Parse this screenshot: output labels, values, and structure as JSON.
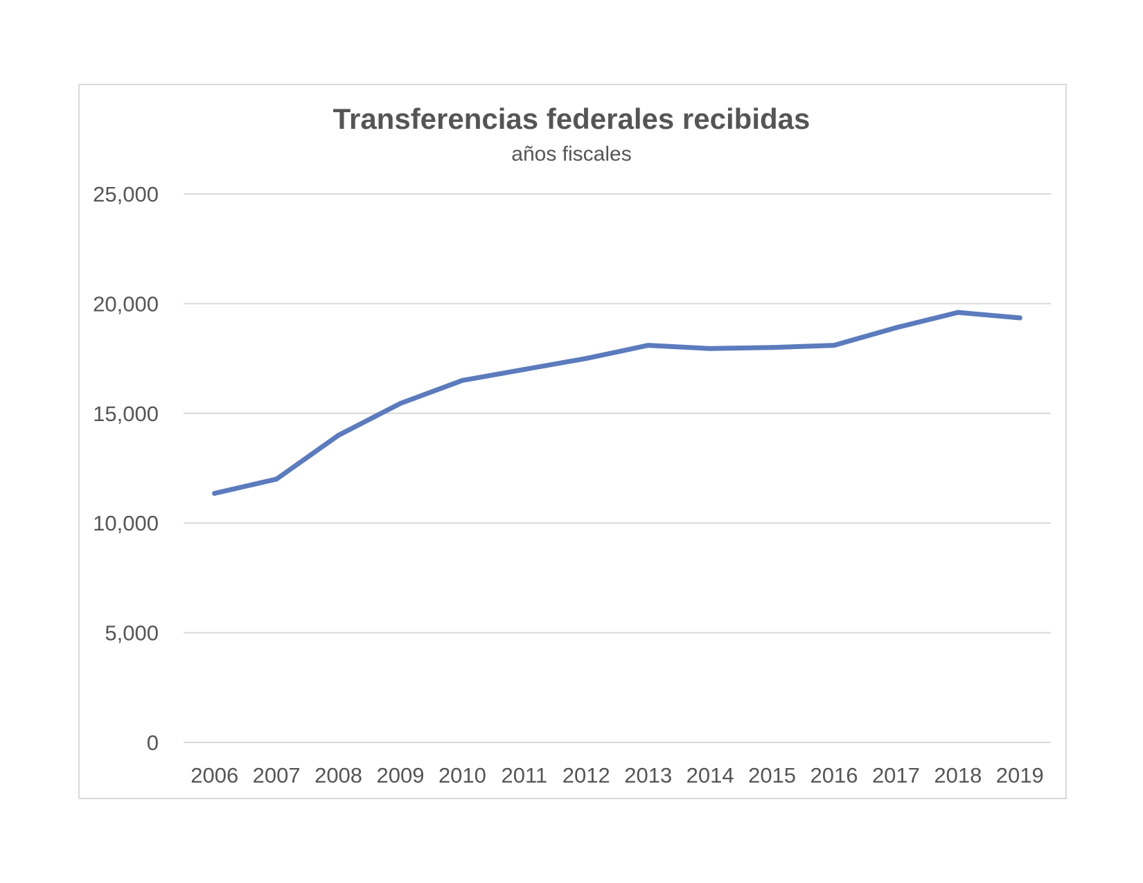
{
  "chart_data": {
    "type": "line",
    "title": "Transferencias federales recibidas",
    "subtitle": "años fiscales",
    "xlabel": "",
    "ylabel": "",
    "categories": [
      "2006",
      "2007",
      "2008",
      "2009",
      "2010",
      "2011",
      "2012",
      "2013",
      "2014",
      "2015",
      "2016",
      "2017",
      "2018",
      "2019"
    ],
    "series": [
      {
        "values": [
          11350,
          12000,
          14000,
          15450,
          16500,
          17000,
          17500,
          18100,
          17950,
          18000,
          18100,
          18900,
          19600,
          19350
        ]
      }
    ],
    "ylim": [
      0,
      25000
    ],
    "yticks": [
      0,
      5000,
      10000,
      15000,
      20000,
      25000
    ],
    "ytick_labels": [
      "0",
      "5,000",
      "10,000",
      "15,000",
      "20,000",
      "25,000"
    ],
    "grid": true,
    "legend": "none",
    "colors": {
      "series": "#5b7bbd",
      "grid": "#d9d9d9",
      "text": "#555555",
      "border": "#d9d9d9"
    }
  }
}
